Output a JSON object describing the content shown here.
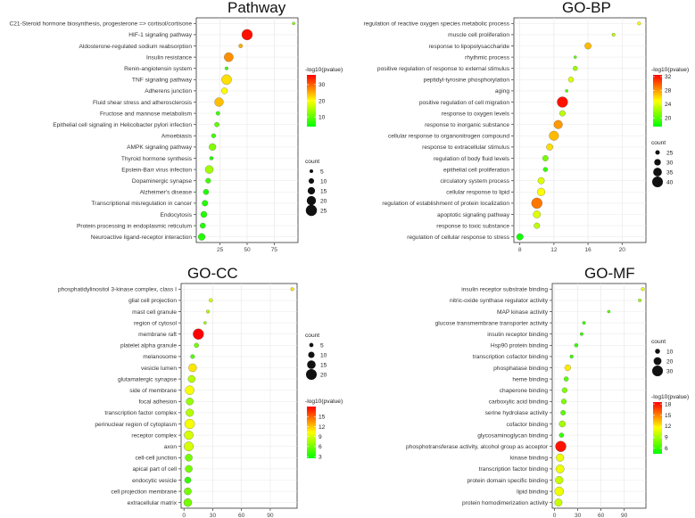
{
  "chart_data": [
    {
      "type": "scatter",
      "title": "Pathway",
      "xlabel": "",
      "ylabel": "",
      "xlim": [
        3,
        97
      ],
      "xticks": [
        25,
        50,
        75
      ],
      "categories": [
        "C21-Steroid hormone biosynthesis, progesterone => cortisol/cortisone",
        "HIF-1 signaling pathway",
        "Aldosterone-regulated sodium reabsorption",
        "Insulin resistance",
        "Renin-angiotensin system",
        "TNF signaling pathway",
        "Adherens junction",
        "Fluid shear stress and atherosclerosis",
        "Fructose and mannose metabolism",
        "Epithelial cell signaling in Helicobacter pylori infection",
        "Amoebiasis",
        "AMPK signaling pathway",
        "Thyroid hormone synthesis",
        "Epstein-Barr virus infection",
        "Dopaminergic synapse",
        "Alzheimer's disease",
        "Transcriptional misregulation in cancer",
        "Endocytosis",
        "Protein processing in endoplasmic reticulum",
        "Neuroactive ligand-receptor interaction"
      ],
      "x": [
        93,
        50,
        44,
        33,
        31,
        31,
        29,
        24,
        23,
        22,
        19,
        18,
        17,
        15,
        14,
        12,
        11,
        10,
        9,
        8
      ],
      "count": [
        3,
        24,
        6,
        20,
        4,
        22,
        12,
        19,
        6,
        8,
        7,
        14,
        5,
        17,
        9,
        10,
        11,
        12,
        10,
        14
      ],
      "pvalue_color": [
        12,
        35,
        25,
        27,
        8,
        22,
        20,
        24,
        8,
        10,
        8,
        12,
        6,
        14,
        8,
        6,
        6,
        6,
        6,
        6
      ],
      "color_legend": {
        "title": "-log10(pvalue)",
        "ticks": [
          10,
          20,
          30
        ],
        "range": [
          4,
          36
        ],
        "low": "#00ff00",
        "high": "#ff0000"
      },
      "size_legend": {
        "title": "count",
        "values": [
          5,
          10,
          15,
          20,
          25
        ]
      }
    },
    {
      "type": "scatter",
      "title": "GO-BP",
      "xlabel": "",
      "ylabel": "",
      "xlim": [
        7.3,
        22.8
      ],
      "xticks": [
        8,
        12,
        16,
        20
      ],
      "categories": [
        "regulation of reactive oxygen species metabolic process",
        "muscle cell proliferation",
        "response to lipopolysaccharide",
        "rhythmic process",
        "positive regulation of response to external stimulus",
        "peptidyl-tyrosine phosphorylation",
        "aging",
        "positive regulation of cell migration",
        "response to oxygen levels",
        "response to inorganic substance",
        "cellular response to organonitrogen compound",
        "response to extracellular stimulus",
        "regulation of body fluid levels",
        "epithelial cell proliferation",
        "circulatory system process",
        "cellular response to lipid",
        "regulation of establishment of protein localization",
        "apoptotic signaling pathway",
        "response to toxic substance",
        "regulation of cellular response to stress"
      ],
      "x": [
        22,
        19,
        16,
        14.5,
        14.5,
        14,
        13.5,
        13,
        13,
        12.5,
        12,
        11.5,
        11,
        11,
        10.5,
        10.5,
        10,
        10,
        10,
        8
      ],
      "count": [
        22,
        22,
        30,
        21,
        25,
        27,
        21,
        40,
        28,
        35,
        37,
        30,
        28,
        25,
        30,
        33,
        40,
        32,
        28,
        30
      ],
      "pvalue_color": [
        25,
        23,
        27,
        20,
        22,
        24,
        20,
        32,
        23,
        28,
        27,
        26,
        21,
        19,
        24,
        25,
        29,
        24,
        23,
        18
      ],
      "color_legend": {
        "title": "-log10(pvalue)",
        "ticks": [
          20,
          24,
          28,
          32
        ],
        "range": [
          17.5,
          32.5
        ],
        "low": "#00ff00",
        "high": "#ff0000"
      },
      "size_legend": {
        "title": "count",
        "values": [
          25,
          30,
          35,
          40
        ]
      }
    },
    {
      "type": "scatter",
      "title": "GO-CC",
      "xlabel": "",
      "ylabel": "",
      "xlim": [
        -3,
        118
      ],
      "xticks": [
        0,
        30,
        60,
        90
      ],
      "categories": [
        "phosphatidylinositol 3-kinase complex, class I",
        "glial cell projection",
        "mast cell granule",
        "region of cytosol",
        "membrane raft",
        "platelet alpha granule",
        "melanosome",
        "vesicle lumen",
        "glutamatergic synapse",
        "side of membrane",
        "focal adhesion",
        "transcription factor complex",
        "perinuclear region of cytoplasm",
        "receptor complex",
        "axon",
        "cell-cell junction",
        "apical part of cell",
        "endocytic vesicle",
        "cell projection membrane",
        "extracellular matrix"
      ],
      "x": [
        113,
        28,
        25,
        22,
        15,
        13,
        9,
        9,
        8,
        6,
        6,
        6,
        6,
        5,
        5,
        5,
        5,
        4,
        4,
        4
      ],
      "count": [
        3,
        4,
        3,
        2,
        20,
        6,
        5,
        14,
        12,
        16,
        12,
        13,
        18,
        16,
        17,
        12,
        12,
        10,
        12,
        14
      ],
      "pvalue_color": [
        11,
        9,
        8,
        7,
        18,
        6,
        5,
        11,
        8,
        10,
        7,
        8,
        10,
        9,
        9,
        6,
        6,
        4,
        6,
        6
      ],
      "color_legend": {
        "title": "-log10(pvalue)",
        "ticks": [
          3,
          6,
          9,
          12,
          15
        ],
        "range": [
          2.5,
          18
        ],
        "low": "#00ff00",
        "high": "#ff0000"
      },
      "size_legend": {
        "title": "count",
        "values": [
          5,
          10,
          15,
          20
        ]
      }
    },
    {
      "type": "scatter",
      "title": "GO-MF",
      "xlabel": "",
      "ylabel": "",
      "xlim": [
        -3,
        118
      ],
      "xticks": [
        0,
        30,
        60,
        90
      ],
      "categories": [
        "insulin receptor substrate binding",
        "nitric-oxide synthase regulator activity",
        "MAP kinase activity",
        "glucose transmembrane transporter activity",
        "insulin receptor binding",
        "Hsp90 protein binding",
        "transcription cofactor binding",
        "phosphatase binding",
        "heme binding",
        "chaperone binding",
        "carboxylic acid binding",
        "serine hydrolase activity",
        "cofactor binding",
        "glycosaminoglycan binding",
        "phosphotransferase activity, alcohol group as acceptor",
        "kinase binding",
        "transcription factor binding",
        "protein domain specific binding",
        "lipid binding",
        "protein homodimerization activity"
      ],
      "x": [
        114,
        110,
        70,
        38,
        35,
        28,
        22,
        17,
        15,
        13,
        12,
        11,
        10,
        9,
        8,
        7,
        7,
        6,
        6,
        5
      ],
      "count": [
        5,
        4,
        3,
        4,
        4,
        6,
        5,
        14,
        9,
        11,
        11,
        10,
        15,
        9,
        30,
        20,
        22,
        20,
        24,
        19
      ],
      "pvalue_color": [
        11,
        9,
        7,
        6,
        6,
        6,
        6,
        12,
        7,
        8,
        8,
        7,
        9,
        6,
        18,
        11,
        11,
        10,
        11,
        10
      ],
      "color_legend": {
        "title": "-log10(pvalue)",
        "ticks": [
          6,
          9,
          12,
          15,
          18
        ],
        "range": [
          4.5,
          18.5
        ],
        "low": "#00ff00",
        "high": "#ff0000"
      },
      "size_legend": {
        "title": "count",
        "values": [
          10,
          20,
          30
        ]
      }
    }
  ]
}
